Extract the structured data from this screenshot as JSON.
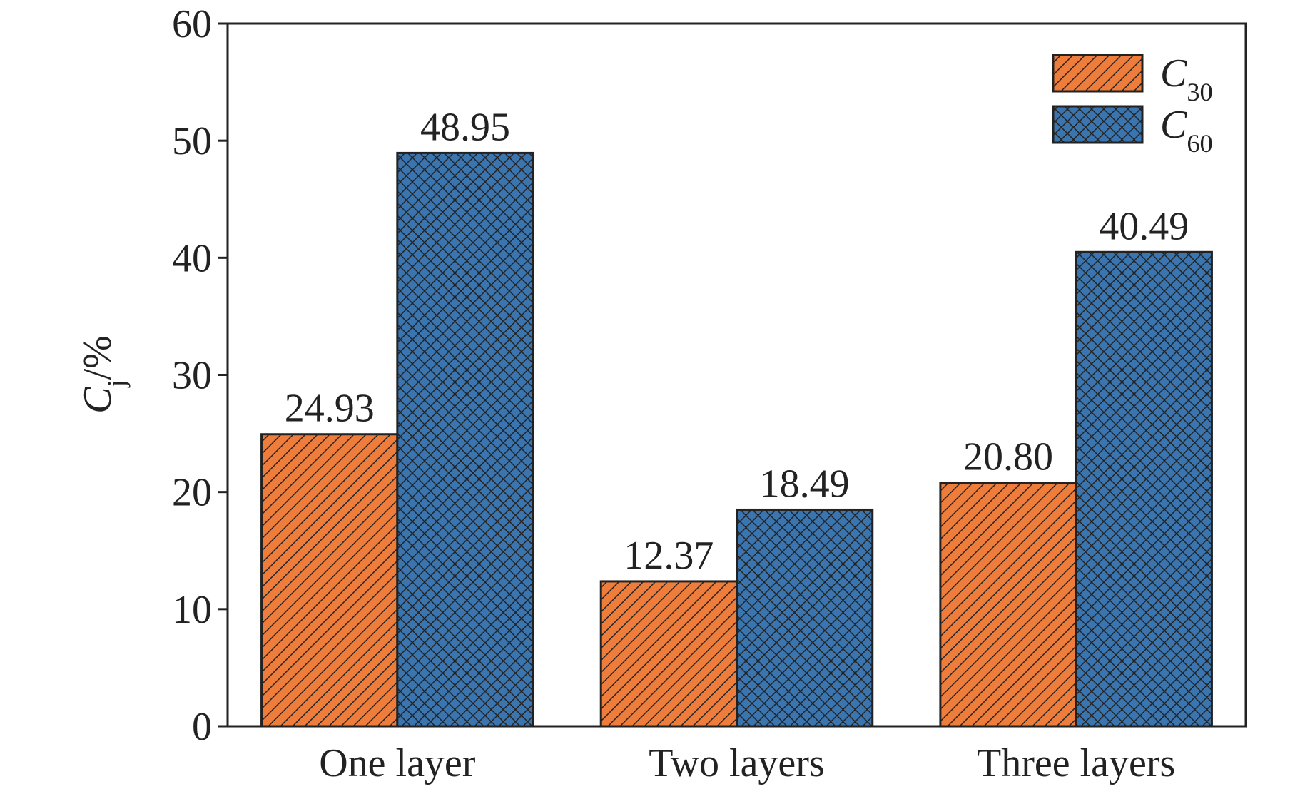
{
  "chart_data": {
    "type": "bar",
    "y_label": "Cj/%",
    "categories": [
      "One layer",
      "Two layers",
      "Three layers"
    ],
    "series": [
      {
        "name": "C30",
        "color": "#ee7d3b",
        "hatch": "diagonal",
        "values": [
          24.93,
          12.37,
          20.8
        ],
        "value_labels": [
          "24.93",
          "12.37",
          "20.80"
        ]
      },
      {
        "name": "C60",
        "color": "#3a75b0",
        "hatch": "cross",
        "values": [
          48.95,
          18.49,
          40.49
        ],
        "value_labels": [
          "48.95",
          "18.49",
          "40.49"
        ]
      }
    ],
    "ylim": [
      0,
      60
    ],
    "yticks": [
      0,
      10,
      20,
      30,
      40,
      50,
      60
    ],
    "legend": "upper-right"
  }
}
